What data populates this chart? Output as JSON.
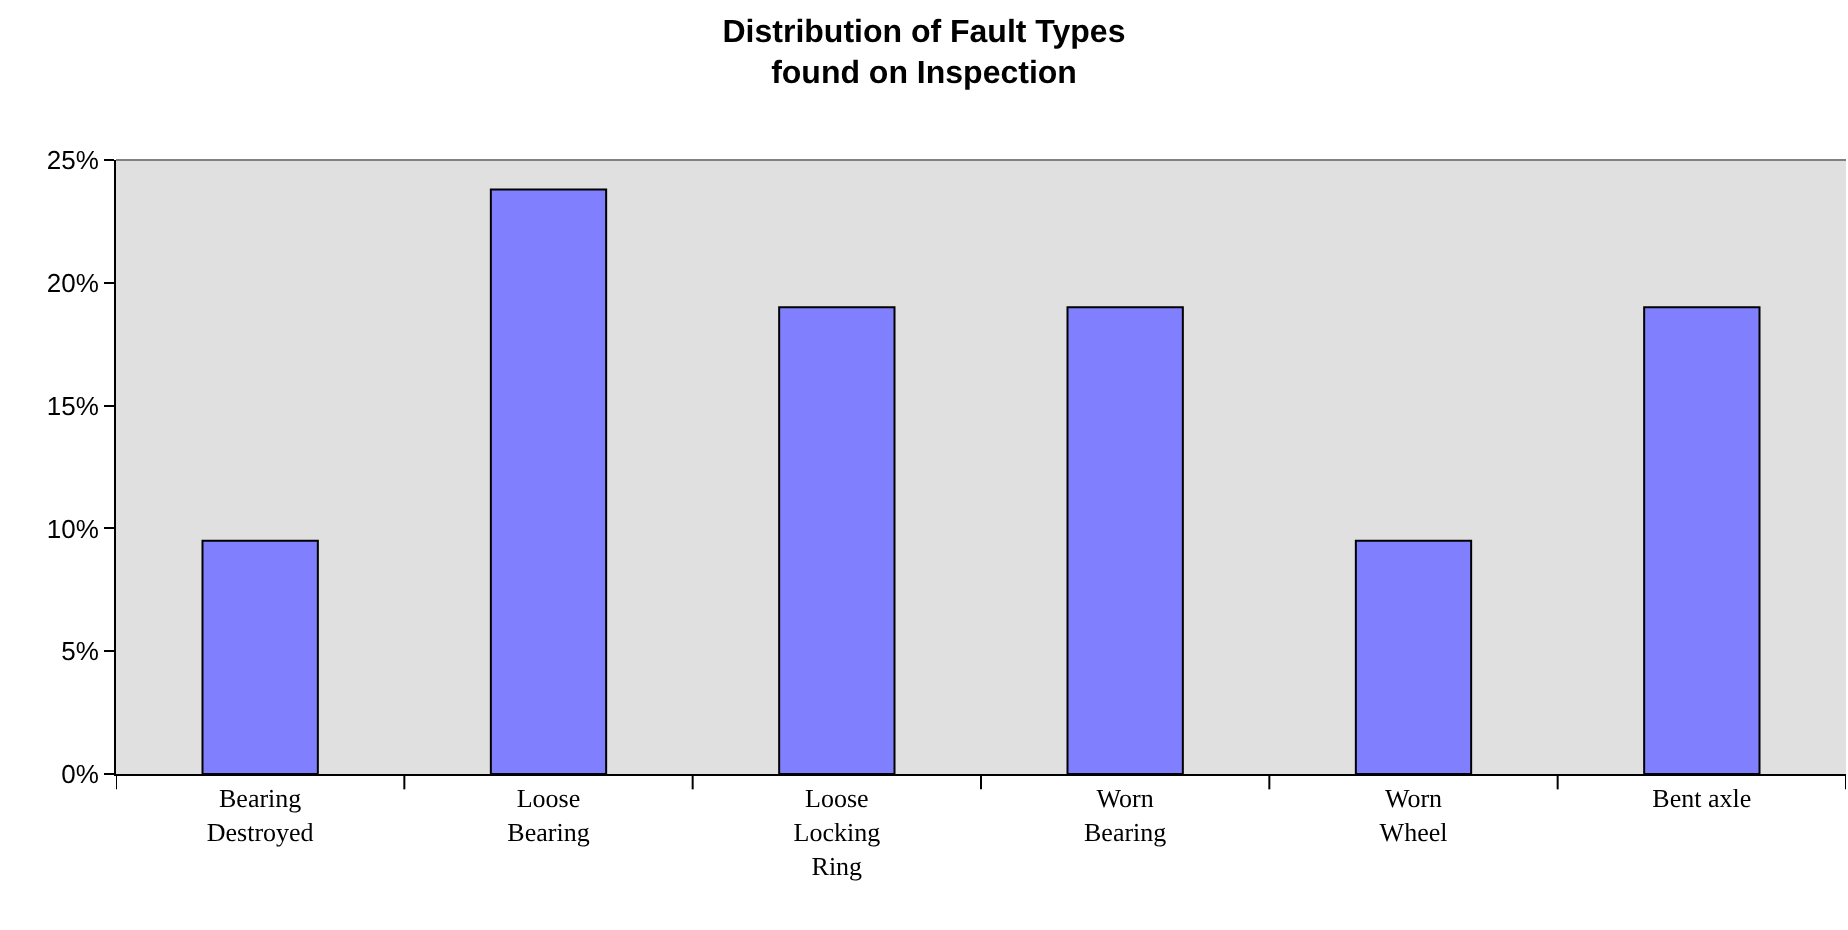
{
  "chart_data": {
    "type": "bar",
    "title": "Distribution of Fault Types\nfound on Inspection",
    "categories": [
      "Bearing Destroyed",
      "Loose Bearing",
      "Loose Locking Ring",
      "Worn Bearing",
      "Worn Wheel",
      "Bent axle"
    ],
    "values": [
      9.5,
      23.8,
      19.0,
      19.0,
      9.5,
      19.0
    ],
    "color": "#8080ff",
    "ylim": [
      0,
      25
    ],
    "yticks": [
      {
        "value": 0,
        "label": "0%"
      },
      {
        "value": 5,
        "label": "5%"
      },
      {
        "value": 10,
        "label": "10%"
      },
      {
        "value": 15,
        "label": "15%"
      },
      {
        "value": 20,
        "label": "20%"
      },
      {
        "value": 25,
        "label": "25%"
      }
    ]
  }
}
